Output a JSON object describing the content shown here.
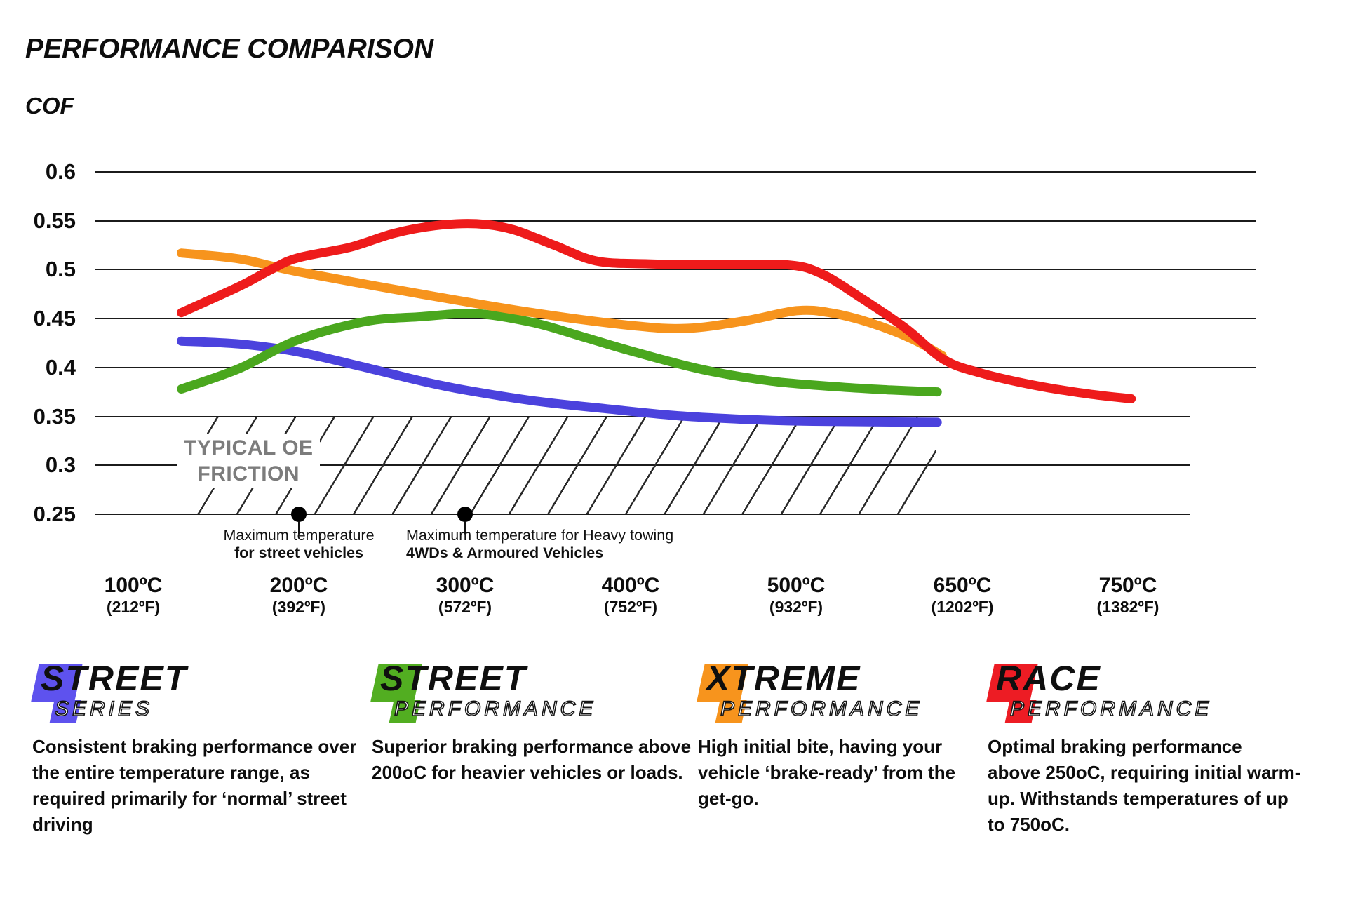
{
  "chart_data": {
    "type": "line",
    "title": "PERFORMANCE COMPARISON",
    "y_axis": {
      "label": "COF",
      "min": 0.25,
      "max": 0.6,
      "tick_interval": 0.05,
      "tick_labels": [
        "0.6",
        "0.55",
        "0.5",
        "0.45",
        "0.4",
        "0.35",
        "0.3",
        "0.25"
      ],
      "grid": true
    },
    "x_axis": {
      "unit": "temperature",
      "ticks": [
        {
          "c": "100ºC",
          "f": "(212ºF)"
        },
        {
          "c": "200ºC",
          "f": "(392ºF)"
        },
        {
          "c": "300ºC",
          "f": "(572ºF)"
        },
        {
          "c": "400ºC",
          "f": "(752ºF)"
        },
        {
          "c": "500ºC",
          "f": "(932ºF)"
        },
        {
          "c": "650ºC",
          "f": "(1202ºF)"
        },
        {
          "c": "750ºC",
          "f": "(1382ºF)"
        }
      ],
      "note": "ticks evenly spaced; series x values are tick-index units (0 = 100ºC tick, 6 = 750ºC tick)"
    },
    "oe_band": {
      "label_line1": "TYPICAL OE",
      "label_line2": "FRICTION",
      "cof_min": 0.25,
      "cof_max": 0.35,
      "x_from_tick": 0.28,
      "x_to_tick": 4.84
    },
    "annotations": [
      {
        "x_tick": 1,
        "cof": 0.25,
        "line1": "Maximum temperature",
        "line2": "for street vehicles",
        "align": "center"
      },
      {
        "x_tick": 2,
        "cof": 0.25,
        "line1": "Maximum temperature for Heavy towing",
        "line2": "4WDs & Armoured Vehicles",
        "align": "left"
      }
    ],
    "series": [
      {
        "name": "Street Series",
        "color": "#4b42dd",
        "points": [
          [
            0.29,
            0.427
          ],
          [
            0.64,
            0.424
          ],
          [
            0.99,
            0.416
          ],
          [
            1.4,
            0.4
          ],
          [
            1.74,
            0.386
          ],
          [
            2.0,
            0.377
          ],
          [
            2.41,
            0.366
          ],
          [
            2.84,
            0.358
          ],
          [
            3.26,
            0.351
          ],
          [
            3.68,
            0.347
          ],
          [
            4.1,
            0.345
          ],
          [
            4.85,
            0.344
          ]
        ]
      },
      {
        "name": "Street Performance",
        "color": "#4aa71e",
        "points": [
          [
            0.29,
            0.378
          ],
          [
            0.64,
            0.399
          ],
          [
            0.99,
            0.428
          ],
          [
            1.4,
            0.447
          ],
          [
            1.74,
            0.452
          ],
          [
            2.07,
            0.455
          ],
          [
            2.41,
            0.446
          ],
          [
            2.7,
            0.432
          ],
          [
            3.0,
            0.417
          ],
          [
            3.43,
            0.398
          ],
          [
            3.85,
            0.386
          ],
          [
            4.27,
            0.38
          ],
          [
            4.57,
            0.377
          ],
          [
            4.85,
            0.375
          ]
        ]
      },
      {
        "name": "Xtreme Performance",
        "color": "#f7941d",
        "points": [
          [
            0.29,
            0.517
          ],
          [
            0.64,
            0.511
          ],
          [
            0.99,
            0.498
          ],
          [
            1.74,
            0.475
          ],
          [
            2.41,
            0.456
          ],
          [
            3.0,
            0.443
          ],
          [
            3.34,
            0.44
          ],
          [
            3.7,
            0.448
          ],
          [
            4.0,
            0.458
          ],
          [
            4.2,
            0.456
          ],
          [
            4.44,
            0.446
          ],
          [
            4.7,
            0.429
          ],
          [
            4.88,
            0.412
          ]
        ]
      },
      {
        "name": "Race Performance",
        "color": "#ee1b1b",
        "points": [
          [
            0.29,
            0.456
          ],
          [
            0.64,
            0.483
          ],
          [
            0.83,
            0.5
          ],
          [
            0.99,
            0.512
          ],
          [
            1.31,
            0.523
          ],
          [
            1.57,
            0.537
          ],
          [
            1.82,
            0.545
          ],
          [
            2.07,
            0.547
          ],
          [
            2.29,
            0.541
          ],
          [
            2.54,
            0.525
          ],
          [
            2.79,
            0.509
          ],
          [
            3.09,
            0.506
          ],
          [
            3.51,
            0.505
          ],
          [
            3.94,
            0.505
          ],
          [
            4.15,
            0.496
          ],
          [
            4.4,
            0.47
          ],
          [
            4.66,
            0.44
          ],
          [
            4.89,
            0.408
          ],
          [
            5.12,
            0.394
          ],
          [
            5.46,
            0.381
          ],
          [
            5.76,
            0.373
          ],
          [
            6.02,
            0.368
          ]
        ]
      }
    ]
  },
  "products": [
    {
      "word": "STREET",
      "sub": "SERIES",
      "color": "#5e52ee",
      "description_lines": [
        "Consistent braking performance over",
        "the entire temperature range, as",
        "required primarily for ‘normal’ street",
        "driving"
      ]
    },
    {
      "word": "STREET",
      "sub": "PERFORMANCE",
      "color": "#52ae21",
      "description_lines": [
        "Superior braking performance above",
        "200oC for heavier vehicles or loads."
      ]
    },
    {
      "word": "XTREME",
      "sub": "PERFORMANCE",
      "color": "#f7941d",
      "description_lines": [
        "High initial bite, having your",
        "vehicle ‘brake-ready’ from the",
        "get-go."
      ]
    },
    {
      "word": "RACE",
      "sub": "PERFORMANCE",
      "color": "#ed1c24",
      "description_lines": [
        "Optimal braking performance",
        "above 250oC, requiring initial warm-",
        "up. Withstands temperatures of up",
        "to 750oC."
      ]
    }
  ]
}
